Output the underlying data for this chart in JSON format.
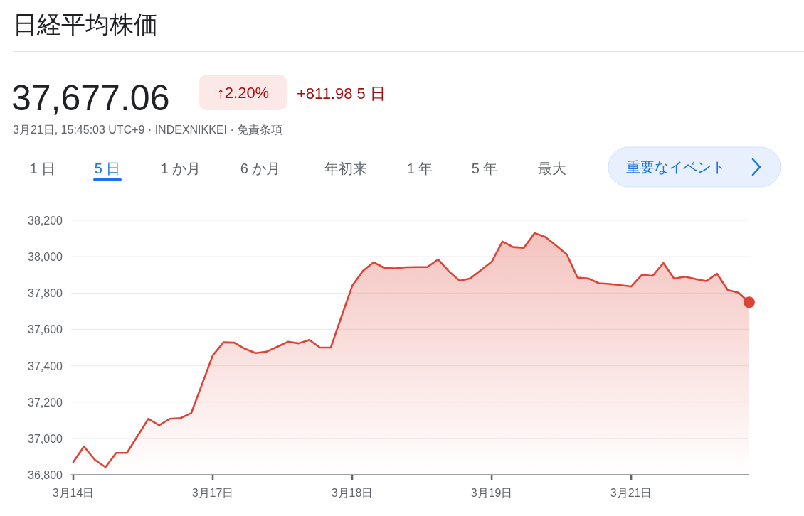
{
  "chart_data": {
    "type": "area",
    "title": "日経平均株価",
    "annotations": [
      "37,677.06",
      "↑2.20%",
      "+811.98 5 日",
      "3月21日, 15:45:03 UTC+9 · INDEXNIKKEI · 免責条項",
      "1 日",
      "5 日",
      "1 か月",
      "6 か月",
      "年初来",
      "1 年",
      "5 年",
      "最大",
      "重要なイベント"
    ],
    "categories": [
      "3月14日",
      null,
      null,
      null,
      null,
      null,
      null,
      null,
      null,
      null,
      null,
      null,
      null,
      "3月17日",
      null,
      null,
      null,
      null,
      null,
      null,
      null,
      null,
      null,
      null,
      null,
      null,
      "3月18日",
      null,
      null,
      null,
      null,
      null,
      null,
      null,
      null,
      null,
      null,
      null,
      null,
      "3月19日",
      null,
      null,
      null,
      null,
      null,
      null,
      null,
      null,
      null,
      null,
      null,
      null,
      "3月21日",
      null,
      null,
      null,
      null,
      null,
      null,
      null,
      null,
      null,
      null,
      null
    ],
    "series": [
      {
        "color": "#db4437",
        "values": [
          36870,
          36955,
          36883,
          36842,
          36920,
          36920,
          37014,
          37108,
          37072,
          37108,
          37112,
          37140,
          37298,
          37457,
          37529,
          37527,
          37493,
          37470,
          37477,
          37504,
          37532,
          37523,
          37542,
          37500,
          37500,
          37671,
          37840,
          37922,
          37969,
          37938,
          37936,
          37942,
          37943,
          37943,
          37985,
          37920,
          37868,
          37880,
          37926,
          37972,
          38083,
          38053,
          38049,
          38130,
          38108,
          38061,
          38012,
          37885,
          37880,
          37854,
          37850,
          37843,
          37836,
          37900,
          37895,
          37965,
          37879,
          37890,
          37877,
          37866,
          37906,
          37817,
          37802,
          37749
        ]
      }
    ],
    "ylim": [
      36800,
      38200
    ],
    "yticks": [
      {
        "value": 36800,
        "label": "36,800"
      },
      {
        "value": 37000,
        "label": "37,000"
      },
      {
        "value": 37200,
        "label": "37,200"
      },
      {
        "value": 37400,
        "label": "37,400"
      },
      {
        "value": 37600,
        "label": "37,600"
      },
      {
        "value": 37800,
        "label": "37,800"
      },
      {
        "value": 38000,
        "label": "38,000"
      },
      {
        "value": 38200,
        "label": "38,200"
      }
    ],
    "grid": "y"
  }
}
